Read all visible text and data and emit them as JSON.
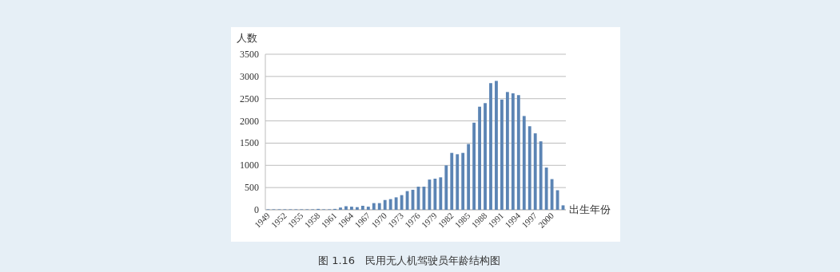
{
  "chart_data": {
    "type": "bar",
    "ylabel": "人数",
    "xlabel": "出生年份",
    "annotations": [
      "图 1.16　民用无人机驾驶员年龄结构图"
    ],
    "categories": [
      "1949",
      null,
      null,
      "1952",
      null,
      null,
      "1955",
      null,
      null,
      "1958",
      null,
      null,
      "1961",
      null,
      null,
      "1964",
      null,
      null,
      "1967",
      null,
      null,
      "1970",
      null,
      null,
      "1973",
      null,
      null,
      "1976",
      null,
      null,
      "1979",
      null,
      null,
      "1982",
      null,
      null,
      "1985",
      null,
      null,
      "1988",
      null,
      null,
      "1991",
      null,
      null,
      "1994",
      null,
      null,
      "1997",
      null,
      null,
      "2000",
      null,
      null
    ],
    "values": [
      10,
      10,
      10,
      10,
      10,
      10,
      10,
      10,
      10,
      20,
      10,
      10,
      20,
      50,
      80,
      70,
      60,
      90,
      70,
      150,
      150,
      220,
      240,
      280,
      330,
      420,
      450,
      520,
      520,
      680,
      700,
      730,
      1000,
      1280,
      1250,
      1280,
      1480,
      1960,
      2320,
      2400,
      2850,
      2900,
      2480,
      2650,
      2620,
      2580,
      2110,
      1880,
      1720,
      1540,
      950,
      690,
      440,
      100
    ],
    "color": "#5b84b4",
    "ylim": [
      0,
      3500
    ],
    "yticks": [
      0,
      500,
      1000,
      1500,
      2000,
      2500,
      3000,
      3500
    ],
    "grid": "y"
  }
}
